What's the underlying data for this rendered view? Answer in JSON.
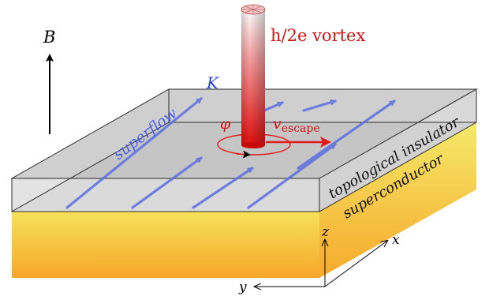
{
  "labels": {
    "b_field": "B",
    "vortex": "h/2e vortex",
    "current": "K",
    "superflow": "superflow",
    "phase": "φ",
    "velocity_symbol": "v",
    "velocity_subscript": "escape",
    "layer_top": "topological insulator",
    "layer_bottom": "superconductor",
    "axis_x": "x",
    "axis_y": "y",
    "axis_z": "z"
  },
  "colors": {
    "superflow": "#5b6fe0",
    "vortex": "#e21b1b",
    "superconductor_top": "#f6df56",
    "superconductor_bottom": "#f6a623",
    "insulator": "#d2d2d2",
    "text_red": "#d41414",
    "text_blue": "#2a3fe8"
  }
}
